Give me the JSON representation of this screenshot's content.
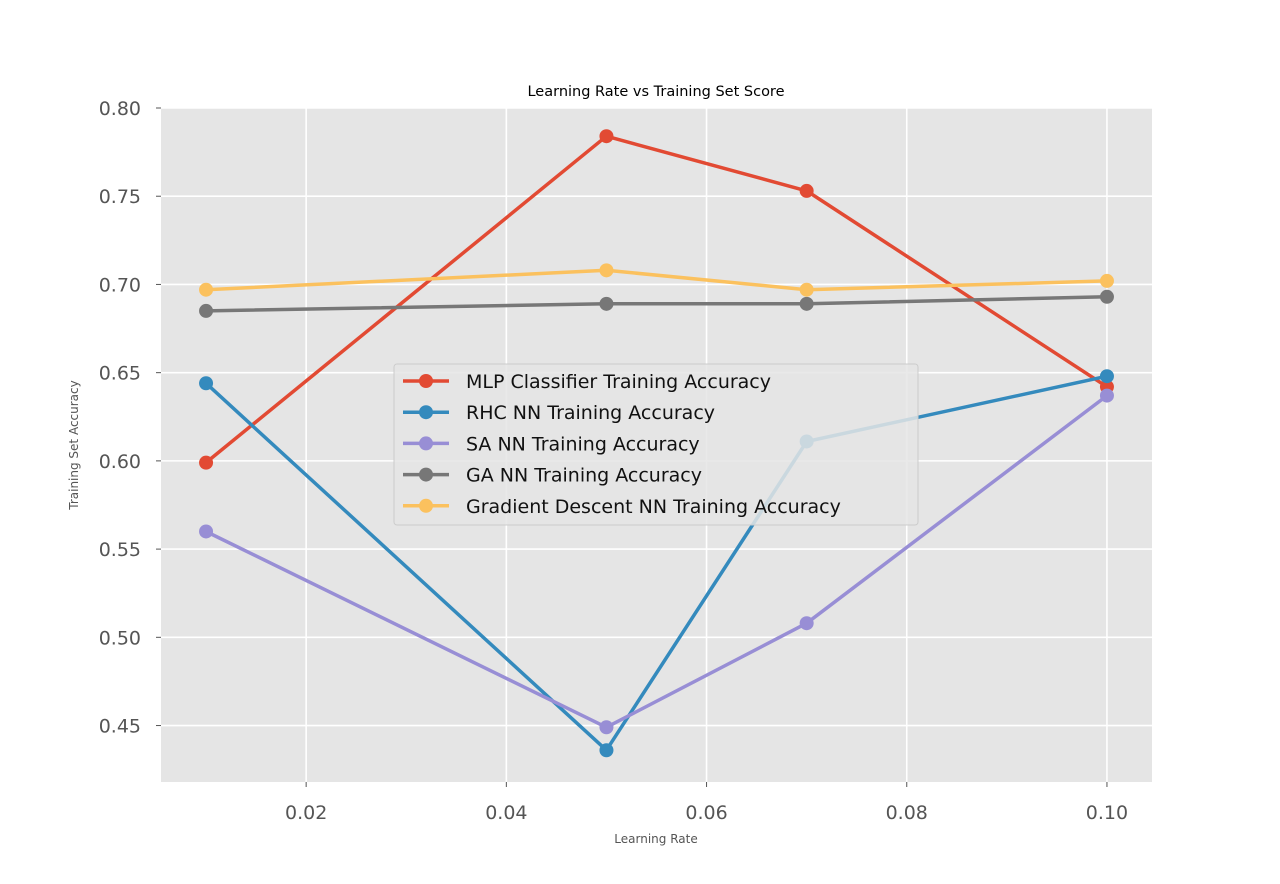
{
  "chart_data": {
    "type": "line",
    "title": "Learning Rate vs Training Set Score",
    "xlabel": "Learning Rate",
    "ylabel": "Training Set Accuracy",
    "x": [
      0.01,
      0.05,
      0.07,
      0.1
    ],
    "xlim": [
      0.0055,
      0.1045
    ],
    "ylim": [
      0.418,
      0.8
    ],
    "xticks": [
      0.02,
      0.04,
      0.06,
      0.08,
      0.1
    ],
    "xtick_labels": [
      "0.02",
      "0.04",
      "0.06",
      "0.08",
      "0.10"
    ],
    "yticks": [
      0.45,
      0.5,
      0.55,
      0.6,
      0.65,
      0.7,
      0.75,
      0.8
    ],
    "ytick_labels": [
      "0.45",
      "0.50",
      "0.55",
      "0.60",
      "0.65",
      "0.70",
      "0.75",
      "0.80"
    ],
    "grid": true,
    "legend_position": "center",
    "series": [
      {
        "name": "MLP Classifier Training Accuracy",
        "color": "#e24a33",
        "values": [
          0.599,
          0.784,
          0.753,
          0.642
        ]
      },
      {
        "name": "RHC NN Training Accuracy",
        "color": "#348abd",
        "values": [
          0.644,
          0.436,
          0.611,
          0.648
        ]
      },
      {
        "name": "SA NN Training Accuracy",
        "color": "#988ed5",
        "values": [
          0.56,
          0.449,
          0.508,
          0.637
        ]
      },
      {
        "name": "GA NN Training Accuracy",
        "color": "#777777",
        "values": [
          0.685,
          0.689,
          0.689,
          0.693
        ]
      },
      {
        "name": "Gradient Descent NN Training Accuracy",
        "color": "#fbc15e",
        "values": [
          0.697,
          0.708,
          0.697,
          0.702
        ]
      }
    ]
  }
}
